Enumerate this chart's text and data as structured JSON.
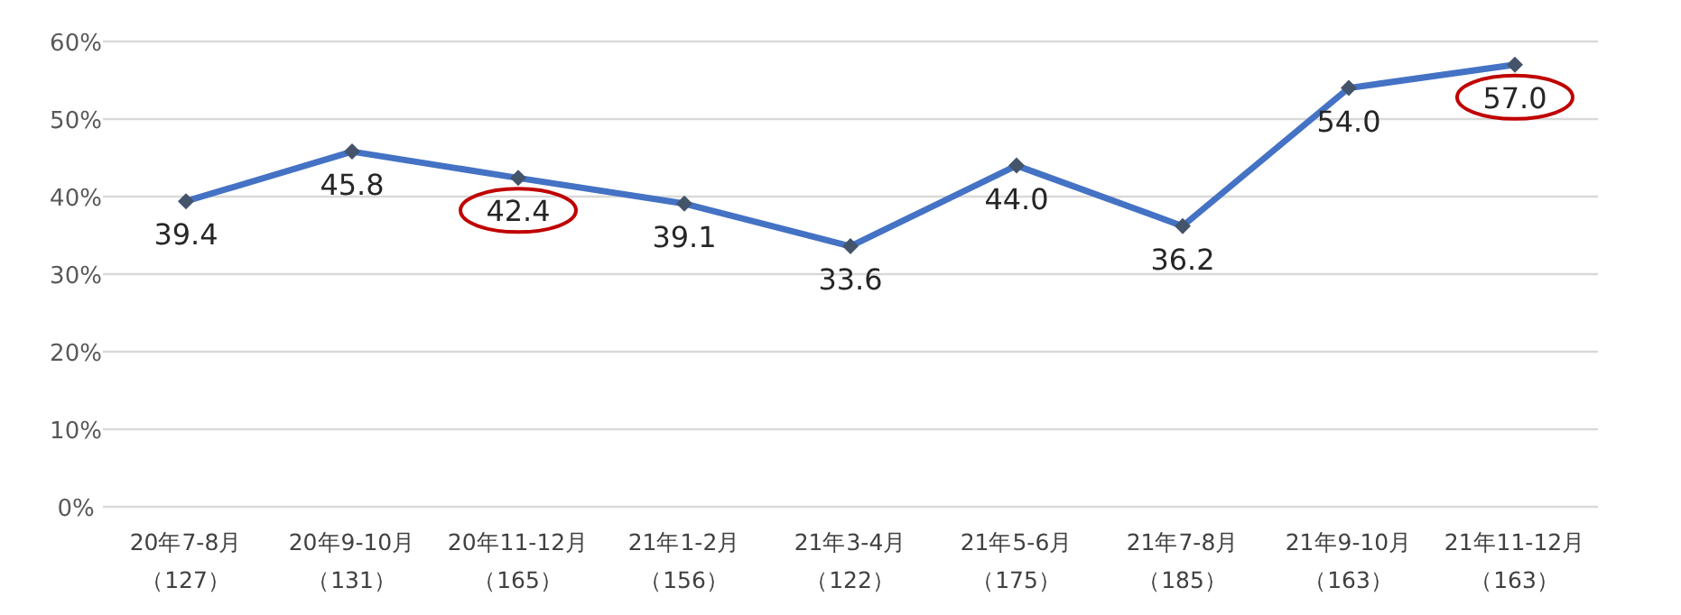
{
  "chart_data": {
    "type": "line",
    "categories": [
      "20年7-8月（127）",
      "20年9-10月（131）",
      "20年11-12月（165）",
      "21年1-2月（156）",
      "21年3-4月（122）",
      "21年5-6月（175）",
      "21年7-8月（185）",
      "21年9-10月（163）",
      "21年11-12月（163）"
    ],
    "series": [
      {
        "color": "#4472c4",
        "values": [
          39.4,
          45.8,
          42.4,
          39.1,
          33.6,
          44.0,
          36.2,
          54.0,
          57.0
        ],
        "value_labels": [
          "39.4",
          "45.8",
          "42.4",
          "39.1",
          "33.6",
          "44.0",
          "36.2",
          "54.0",
          "57.0"
        ]
      }
    ],
    "ylim": [
      0,
      60
    ],
    "yticks": [
      {
        "value": 0,
        "label": "0%"
      },
      {
        "value": 10,
        "label": "10%"
      },
      {
        "value": 20,
        "label": "20%"
      },
      {
        "value": 30,
        "label": "30%"
      },
      {
        "value": 40,
        "label": "40%"
      },
      {
        "value": 50,
        "label": "50%"
      },
      {
        "value": 60,
        "label": "60%"
      }
    ],
    "grid": "y",
    "marker": "diamond",
    "line_style": "solid"
  }
}
